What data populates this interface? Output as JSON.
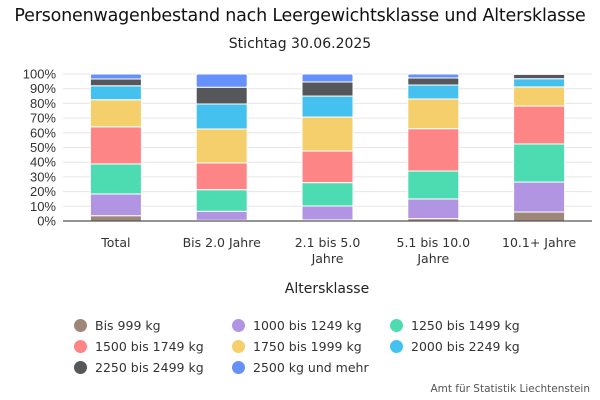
{
  "chart_data": {
    "type": "bar",
    "stacked": true,
    "normalized": true,
    "title": "Personenwagenbestand nach Leergewichtsklasse und Altersklasse",
    "subtitle": "Stichtag 30.06.2025",
    "xlabel": "Altersklasse",
    "ylabel": "",
    "ylim": [
      0,
      100
    ],
    "yticks": [
      "0%",
      "10%",
      "20%",
      "30%",
      "40%",
      "50%",
      "60%",
      "70%",
      "80%",
      "90%",
      "100%"
    ],
    "grid": true,
    "legend_position": "bottom",
    "categories": [
      [
        "Total"
      ],
      [
        "Bis 2.0 Jahre"
      ],
      [
        "2.1 bis 5.0",
        "Jahre"
      ],
      [
        "5.1 bis 10.0",
        "Jahre"
      ],
      [
        "10.1+ Jahre"
      ]
    ],
    "series": [
      {
        "name": "Bis 999 kg",
        "color": "#9e8679",
        "values": [
          3.6,
          0.5,
          0.7,
          1.6,
          6.1
        ]
      },
      {
        "name": "1000 bis 1249 kg",
        "color": "#b195e3",
        "values": [
          14.8,
          6.1,
          9.5,
          13.4,
          20.4
        ]
      },
      {
        "name": "1250 bis 1499 kg",
        "color": "#4ddbb2",
        "values": [
          20.4,
          14.7,
          15.9,
          19.0,
          25.9
        ]
      },
      {
        "name": "1500 bis 1749 kg",
        "color": "#fe8585",
        "values": [
          25.3,
          18.2,
          21.5,
          28.8,
          25.8
        ]
      },
      {
        "name": "1750 bis 1999 kg",
        "color": "#f4cf6b",
        "values": [
          18.4,
          23.1,
          23.1,
          20.2,
          13.0
        ]
      },
      {
        "name": "2000 bis 2249 kg",
        "color": "#45c1f0",
        "values": [
          9.5,
          17.0,
          14.3,
          9.5,
          5.6
        ]
      },
      {
        "name": "2250 bis 2499 kg",
        "color": "#56575a",
        "values": [
          4.6,
          11.4,
          9.6,
          4.8,
          3.0
        ]
      },
      {
        "name": "2500 kg und mehr",
        "color": "#6690fa",
        "values": [
          3.4,
          9.0,
          5.4,
          2.7,
          0.2
        ]
      }
    ]
  },
  "source": "Amt für Statistik Liechtenstein"
}
